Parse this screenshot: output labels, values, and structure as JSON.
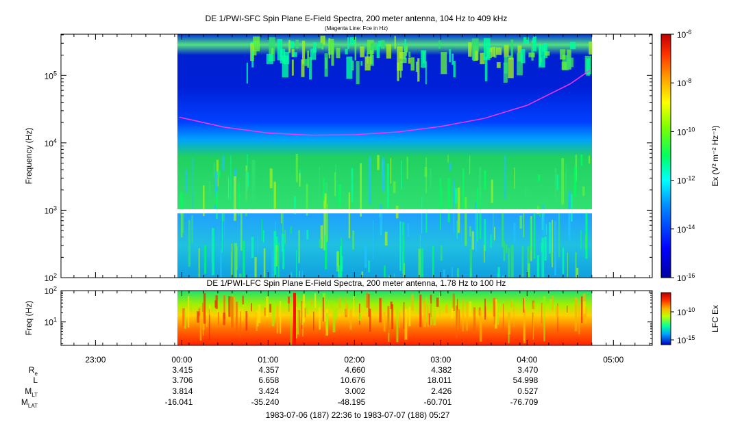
{
  "chart_data": [
    {
      "type": "heatmap",
      "title": "DE 1/PWI-SFC  Spin Plane E-Field Spectra, 200 meter antenna, 104 Hz to 409 kHz",
      "subtitle": "(Magenta Line: Fce in Hz)",
      "ylabel": "Frequency (Hz)",
      "y_scale": "log",
      "ylim": [
        100,
        409000
      ],
      "y_ticks": [
        {
          "value": 100,
          "base": "10",
          "exp": "2"
        },
        {
          "value": 1000,
          "base": "10",
          "exp": "3"
        },
        {
          "value": 10000,
          "base": "10",
          "exp": "4"
        },
        {
          "value": 100000,
          "base": "10",
          "exp": "5"
        }
      ],
      "data_time_range_utc": [
        "23:58",
        "04:44"
      ],
      "data_gap_hz": [
        900,
        1030
      ],
      "colorbar": {
        "label": "Ex (V² m⁻² Hz⁻¹)",
        "scale": "log",
        "range": [
          1e-16,
          1e-06
        ],
        "ticks": [
          {
            "value": 1e-06,
            "base": "10",
            "exp": "-6"
          },
          {
            "value": 1e-08,
            "base": "10",
            "exp": "-8"
          },
          {
            "value": 1e-10,
            "base": "10",
            "exp": "-10"
          },
          {
            "value": 1e-12,
            "base": "10",
            "exp": "-12"
          },
          {
            "value": 1e-14,
            "base": "10",
            "exp": "-14"
          },
          {
            "value": 1e-16,
            "base": "10",
            "exp": "-16"
          }
        ]
      },
      "series": [
        {
          "name": "Fce",
          "color": "#ff33ff",
          "time_hours": [
            23.97,
            0.5,
            1.0,
            1.5,
            2.0,
            2.5,
            3.0,
            3.5,
            4.0,
            4.5,
            4.73
          ],
          "values_hz": [
            24000,
            17000,
            14000,
            13000,
            13200,
            14500,
            17500,
            23000,
            36000,
            75000,
            120000
          ]
        }
      ]
    },
    {
      "type": "heatmap",
      "title": "DE 1/PWI-LFC  Spin Plane E-Field Spectra, 200 meter antenna, 1.78 Hz to 100 Hz",
      "ylabel": "Freq (Hz)",
      "y_scale": "log",
      "ylim": [
        1.78,
        100
      ],
      "y_ticks": [
        {
          "value": 10,
          "base": "10",
          "exp": "1"
        },
        {
          "value": 100,
          "base": "10",
          "exp": "2"
        }
      ],
      "data_time_range_utc": [
        "23:58",
        "04:44"
      ],
      "colorbar": {
        "label": "LFC Ex",
        "scale": "log",
        "ticks": [
          {
            "value": 1e-10,
            "base": "10",
            "exp": "-10"
          },
          {
            "value": 1e-15,
            "base": "10",
            "exp": "-15"
          }
        ]
      }
    }
  ],
  "x_axis": {
    "ticks": [
      "23:00",
      "00:00",
      "01:00",
      "02:00",
      "03:00",
      "04:00",
      "05:00"
    ]
  },
  "ephemeris": {
    "labels": [
      {
        "main": "R",
        "sub": "e"
      },
      {
        "main": "L",
        "sub": ""
      },
      {
        "main": "M",
        "sub": "LT"
      },
      {
        "main": "M",
        "sub": "LAT"
      }
    ],
    "columns": [
      {
        "time": "00:00",
        "values": [
          "3.415",
          "3.706",
          "3.814",
          "-16.041"
        ]
      },
      {
        "time": "01:00",
        "values": [
          "4.357",
          "6.658",
          "3.424",
          "-35.240"
        ]
      },
      {
        "time": "02:00",
        "values": [
          "4.660",
          "10.676",
          "3.002",
          "-48.195"
        ]
      },
      {
        "time": "03:00",
        "values": [
          "4.382",
          "18.011",
          "2.426",
          "-60.701"
        ]
      },
      {
        "time": "04:00",
        "values": [
          "3.470",
          "54.998",
          "0.527",
          "-76.709"
        ]
      }
    ]
  },
  "footer": "1983-07-06 (187) 22:36 to 1983-07-07 (188) 05:27"
}
